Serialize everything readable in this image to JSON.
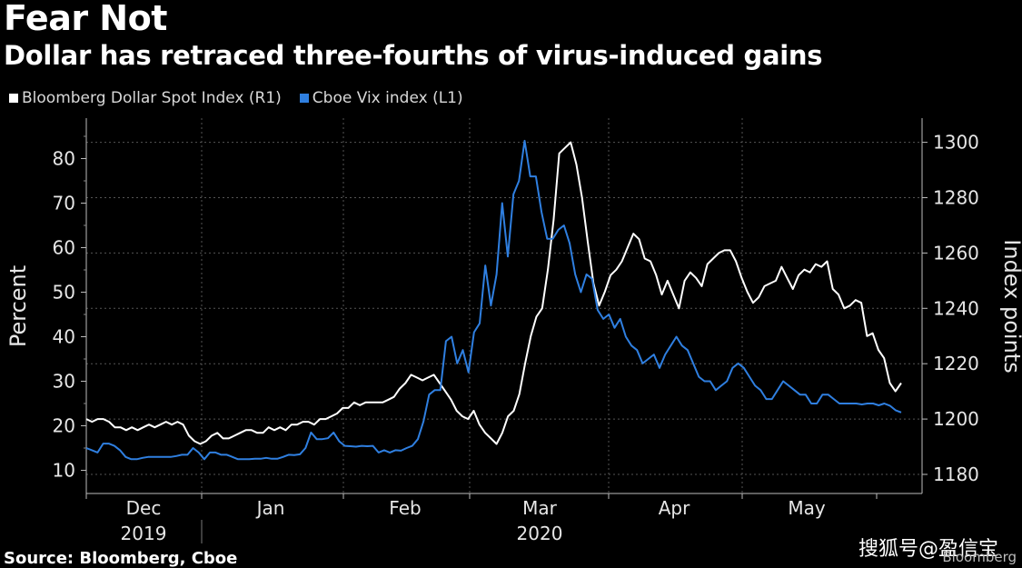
{
  "header": {
    "title": "Fear Not",
    "subtitle": "Dollar has retraced three-fourths of virus-induced gains"
  },
  "footer": {
    "source": "Source: Bloomberg, Cboe",
    "watermark": "搜狐号@盈信宝",
    "brand": "Bloomberg"
  },
  "colors": {
    "background": "#000000",
    "dollar": "#ffffff",
    "vix": "#2f7fe0",
    "grid": "#555555"
  },
  "chart_data": {
    "type": "line",
    "x_axis": {
      "month_labels": [
        "Dec",
        "Jan",
        "Feb",
        "Mar",
        "Apr",
        "May"
      ],
      "year_labels": [
        "2019",
        "2020"
      ]
    },
    "left_axis": {
      "label": "Percent",
      "range": [
        7,
        88
      ],
      "ticks": [
        10,
        20,
        30,
        40,
        50,
        60,
        70,
        80
      ]
    },
    "right_axis": {
      "label": "Index points",
      "range": [
        1178,
        1304
      ],
      "ticks": [
        1180,
        1200,
        1220,
        1240,
        1260,
        1280,
        1300
      ]
    },
    "grid": true,
    "legend_placement": "top-left",
    "series": [
      {
        "name": "Bloomberg Dollar Spot Index (R1)",
        "axis": "right",
        "color": "#ffffff",
        "values": [
          1200,
          1199,
          1200,
          1200,
          1199,
          1197,
          1197,
          1196,
          1197,
          1196,
          1197,
          1198,
          1197,
          1198,
          1199,
          1198,
          1199,
          1198,
          1194,
          1192,
          1191,
          1192,
          1194,
          1195,
          1193,
          1193,
          1194,
          1195,
          1196,
          1196,
          1195,
          1195,
          1197,
          1196,
          1197,
          1196,
          1198,
          1198,
          1199,
          1199,
          1198,
          1200,
          1200,
          1201,
          1202,
          1204,
          1204,
          1206,
          1205,
          1206,
          1206,
          1206,
          1206,
          1207,
          1208,
          1211,
          1213,
          1216,
          1215,
          1214,
          1215,
          1216,
          1213,
          1210,
          1207,
          1203,
          1201,
          1200,
          1203,
          1198,
          1195,
          1193,
          1191,
          1195,
          1201,
          1203,
          1209,
          1220,
          1230,
          1237,
          1240,
          1254,
          1272,
          1296,
          1298,
          1300,
          1292,
          1280,
          1264,
          1249,
          1241,
          1246,
          1252,
          1254,
          1257,
          1262,
          1267,
          1265,
          1258,
          1257,
          1252,
          1245,
          1250,
          1245,
          1240,
          1250,
          1253,
          1251,
          1248,
          1256,
          1258,
          1260,
          1261,
          1261,
          1257,
          1251,
          1246,
          1242,
          1244,
          1248,
          1249,
          1250,
          1255,
          1251,
          1247,
          1252,
          1254,
          1253,
          1256,
          1255,
          1257,
          1247,
          1245,
          1240,
          1241,
          1243,
          1242,
          1230,
          1231,
          1225,
          1222,
          1213,
          1210,
          1213
        ]
      },
      {
        "name": "Cboe Vix index (L1)",
        "axis": "left",
        "color": "#2f7fe0",
        "values": [
          15,
          14.5,
          14,
          16,
          16,
          15.5,
          14.5,
          13,
          12.5,
          12.5,
          12.8,
          13,
          13,
          13,
          13,
          13,
          13.2,
          13.5,
          13.5,
          15,
          14,
          12.5,
          14,
          14,
          13.5,
          13.5,
          13,
          12.5,
          12.5,
          12.5,
          12.6,
          12.6,
          12.8,
          12.6,
          12.6,
          13,
          13.5,
          13.4,
          13.6,
          15,
          18.5,
          17,
          17,
          17.2,
          18.5,
          16.5,
          15.5,
          15.4,
          15.3,
          15.5,
          15.4,
          15.5,
          14,
          14.5,
          14,
          14.5,
          14.4,
          15,
          15.5,
          17,
          21,
          27,
          28,
          28,
          39,
          40,
          34,
          37,
          32,
          41,
          43,
          56,
          47,
          54,
          70,
          58,
          72,
          75,
          84,
          76,
          76,
          68,
          62,
          62,
          64,
          65,
          61,
          54,
          50,
          54,
          53,
          46,
          44,
          45,
          42,
          44,
          40,
          38,
          37,
          34,
          35,
          36,
          33,
          36,
          38,
          40,
          38,
          37,
          34,
          31,
          30,
          30,
          28,
          29,
          30,
          33,
          34,
          33,
          31,
          29,
          28,
          26,
          26,
          28,
          30,
          29,
          28,
          27,
          27,
          25,
          25,
          27,
          27,
          26,
          25,
          25,
          25,
          25,
          24.8,
          25,
          25,
          24.6,
          25,
          24.5,
          23.5,
          23
        ]
      }
    ]
  }
}
